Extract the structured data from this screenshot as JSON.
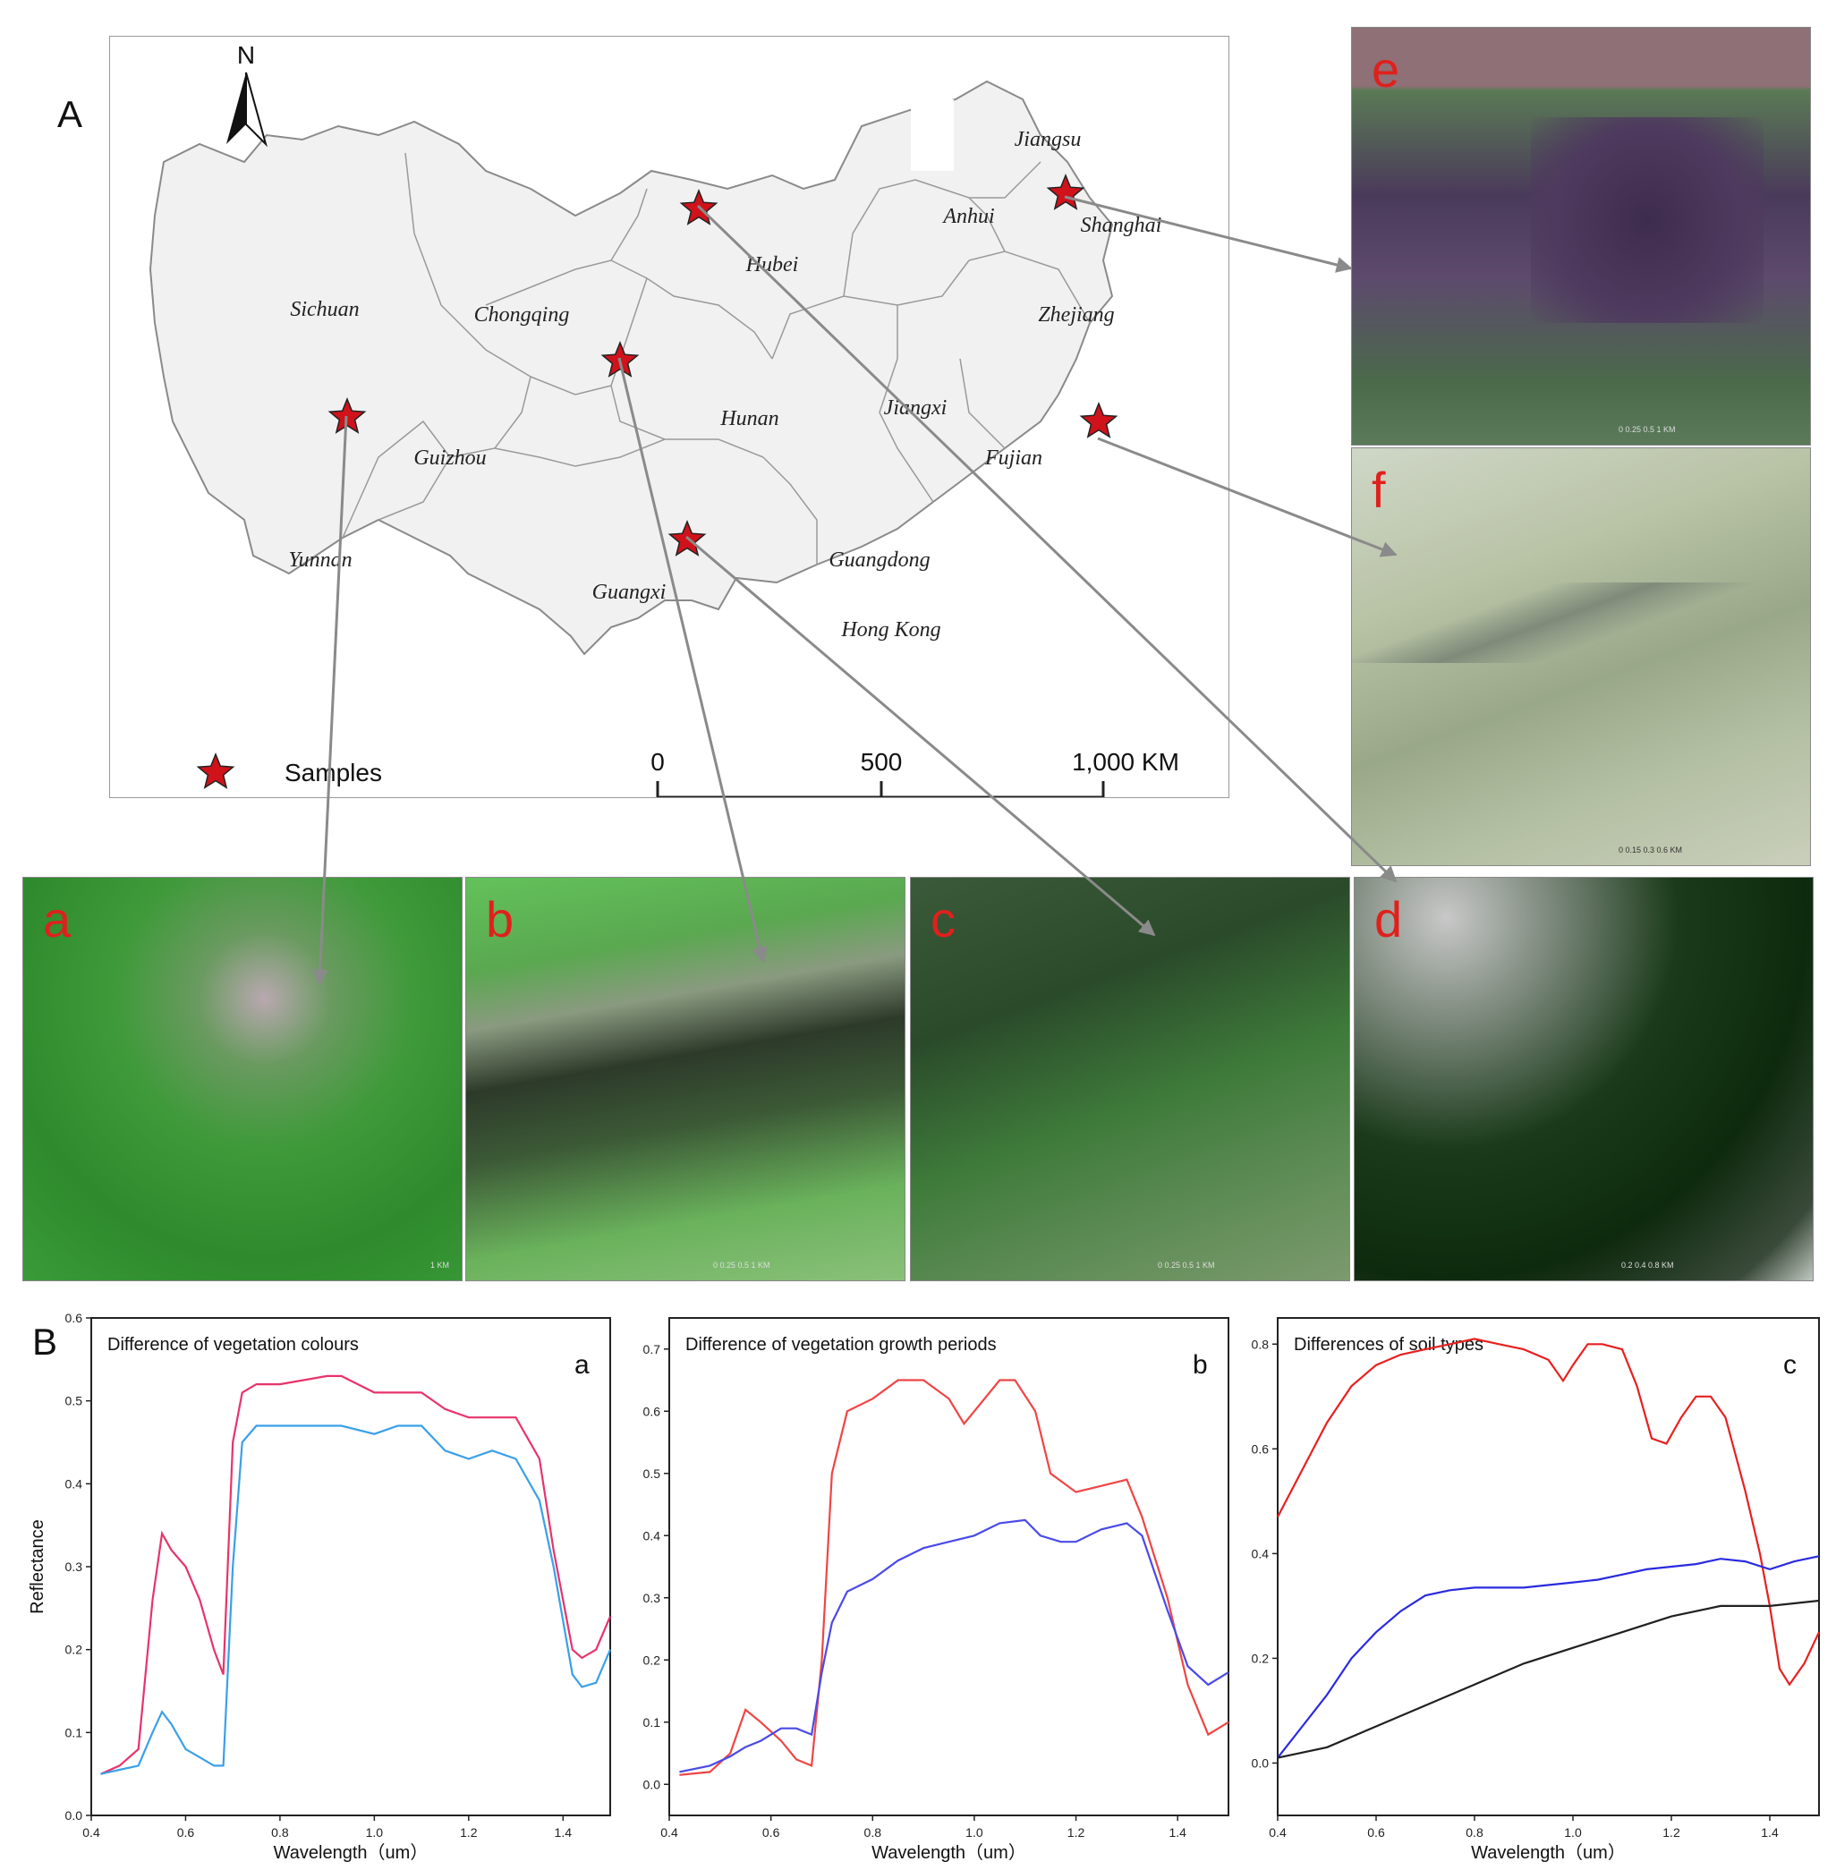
{
  "panel_A": {
    "letter": "A",
    "north_label": "N",
    "provinces": [
      "Sichuan",
      "Chongqing",
      "Hubei",
      "Anhui",
      "Jiangsu",
      "Shanghai",
      "Zhejiang",
      "Hunan",
      "Jiangxi",
      "Fujian",
      "Guizhou",
      "Yunnan",
      "Guangxi",
      "Guangdong",
      "Hong Kong"
    ],
    "legend_label": "Samples",
    "scale_labels": [
      "0",
      "500",
      "1,000 KM"
    ],
    "marker_color": "#d0121b"
  },
  "sat_images": [
    {
      "letter": "e",
      "scale": "0 0.25 0.5 1 KM"
    },
    {
      "letter": "f",
      "scale": "0 0.15 0.3 0.6 KM"
    },
    {
      "letter": "a",
      "scale": "1 KM"
    },
    {
      "letter": "b",
      "scale": "0 0.25 0.5 1 KM"
    },
    {
      "letter": "c",
      "scale": "0 0.25 0.5 1 KM"
    },
    {
      "letter": "d",
      "scale": "0.2 0.4 0.8 KM"
    }
  ],
  "panel_B": {
    "letter": "B"
  },
  "chart_data": [
    {
      "type": "line",
      "title": "Difference of vegetation colours",
      "panel_letter": "a",
      "xlabel": "Wavelength（um）",
      "ylabel": "Reflectance",
      "xlim": [
        0.4,
        1.5
      ],
      "ylim": [
        0,
        0.6
      ],
      "xticks": [
        "0.4",
        "0.6",
        "0.8",
        "1.0",
        "1.2",
        "1.4"
      ],
      "yticks": [
        "0.0",
        "0.1",
        "0.2",
        "0.3",
        "0.4",
        "0.5",
        "0.6"
      ],
      "series": [
        {
          "color": "#e8336b",
          "x": [
            0.42,
            0.46,
            0.5,
            0.53,
            0.55,
            0.57,
            0.6,
            0.63,
            0.66,
            0.68,
            0.7,
            0.72,
            0.75,
            0.8,
            0.9,
            0.93,
            1.0,
            1.05,
            1.1,
            1.15,
            1.2,
            1.25,
            1.3,
            1.35,
            1.38,
            1.42,
            1.44,
            1.47,
            1.5
          ],
          "y": [
            0.05,
            0.06,
            0.08,
            0.26,
            0.34,
            0.32,
            0.3,
            0.26,
            0.2,
            0.17,
            0.45,
            0.51,
            0.52,
            0.52,
            0.53,
            0.53,
            0.51,
            0.51,
            0.51,
            0.49,
            0.48,
            0.48,
            0.48,
            0.43,
            0.32,
            0.2,
            0.19,
            0.2,
            0.24
          ]
        },
        {
          "color": "#3aa0e8",
          "x": [
            0.42,
            0.46,
            0.5,
            0.53,
            0.55,
            0.57,
            0.6,
            0.63,
            0.66,
            0.68,
            0.7,
            0.72,
            0.75,
            0.8,
            0.9,
            0.93,
            1.0,
            1.05,
            1.1,
            1.15,
            1.2,
            1.25,
            1.3,
            1.35,
            1.38,
            1.42,
            1.44,
            1.47,
            1.5
          ],
          "y": [
            0.05,
            0.055,
            0.06,
            0.1,
            0.125,
            0.11,
            0.08,
            0.07,
            0.06,
            0.06,
            0.3,
            0.45,
            0.47,
            0.47,
            0.47,
            0.47,
            0.46,
            0.47,
            0.47,
            0.44,
            0.43,
            0.44,
            0.43,
            0.38,
            0.3,
            0.17,
            0.155,
            0.16,
            0.2
          ]
        }
      ]
    },
    {
      "type": "line",
      "title": "Difference of vegetation growth periods",
      "panel_letter": "b",
      "xlabel": "Wavelength（um）",
      "ylabel": "",
      "xlim": [
        0.4,
        1.5
      ],
      "ylim": [
        -0.05,
        0.75
      ],
      "xticks": [
        "0.4",
        "0.6",
        "0.8",
        "1.0",
        "1.2",
        "1.4"
      ],
      "yticks": [
        "0.0",
        "0.1",
        "0.2",
        "0.3",
        "0.4",
        "0.5",
        "0.6",
        "0.7"
      ],
      "series": [
        {
          "color": "#f04545",
          "x": [
            0.42,
            0.48,
            0.52,
            0.55,
            0.58,
            0.62,
            0.65,
            0.68,
            0.7,
            0.72,
            0.75,
            0.8,
            0.85,
            0.9,
            0.95,
            0.98,
            1.0,
            1.05,
            1.08,
            1.12,
            1.15,
            1.2,
            1.25,
            1.3,
            1.33,
            1.38,
            1.42,
            1.46,
            1.5
          ],
          "y": [
            0.015,
            0.02,
            0.05,
            0.12,
            0.1,
            0.07,
            0.04,
            0.03,
            0.2,
            0.5,
            0.6,
            0.62,
            0.65,
            0.65,
            0.62,
            0.58,
            0.6,
            0.65,
            0.65,
            0.6,
            0.5,
            0.47,
            0.48,
            0.49,
            0.43,
            0.3,
            0.16,
            0.08,
            0.1
          ]
        },
        {
          "color": "#4a4ae8",
          "x": [
            0.42,
            0.48,
            0.52,
            0.55,
            0.58,
            0.62,
            0.65,
            0.68,
            0.7,
            0.72,
            0.75,
            0.8,
            0.85,
            0.9,
            0.95,
            1.0,
            1.05,
            1.1,
            1.13,
            1.17,
            1.2,
            1.25,
            1.3,
            1.33,
            1.38,
            1.42,
            1.46,
            1.5
          ],
          "y": [
            0.02,
            0.03,
            0.045,
            0.06,
            0.07,
            0.09,
            0.09,
            0.08,
            0.18,
            0.26,
            0.31,
            0.33,
            0.36,
            0.38,
            0.39,
            0.4,
            0.42,
            0.425,
            0.4,
            0.39,
            0.39,
            0.41,
            0.42,
            0.4,
            0.28,
            0.19,
            0.16,
            0.18
          ]
        }
      ]
    },
    {
      "type": "line",
      "title": "Differences of soil types",
      "panel_letter": "c",
      "xlabel": "Wavelength（um）",
      "ylabel": "",
      "xlim": [
        0.4,
        1.5
      ],
      "ylim": [
        -0.1,
        0.85
      ],
      "xticks": [
        "0.4",
        "0.6",
        "0.8",
        "1.0",
        "1.2",
        "1.4"
      ],
      "yticks": [
        "0.0",
        "0.2",
        "0.4",
        "0.6",
        "0.8"
      ],
      "series": [
        {
          "color": "#e82020",
          "x": [
            0.4,
            0.45,
            0.5,
            0.55,
            0.6,
            0.65,
            0.7,
            0.75,
            0.8,
            0.85,
            0.9,
            0.95,
            0.98,
            1.0,
            1.03,
            1.06,
            1.1,
            1.13,
            1.16,
            1.19,
            1.22,
            1.25,
            1.28,
            1.31,
            1.35,
            1.38,
            1.4,
            1.42,
            1.44,
            1.47,
            1.5
          ],
          "y": [
            0.47,
            0.56,
            0.65,
            0.72,
            0.76,
            0.78,
            0.79,
            0.8,
            0.81,
            0.8,
            0.79,
            0.77,
            0.73,
            0.76,
            0.8,
            0.8,
            0.79,
            0.72,
            0.62,
            0.61,
            0.66,
            0.7,
            0.7,
            0.66,
            0.52,
            0.4,
            0.3,
            0.18,
            0.15,
            0.19,
            0.25
          ]
        },
        {
          "color": "#2a2ae0",
          "x": [
            0.4,
            0.45,
            0.5,
            0.55,
            0.6,
            0.65,
            0.7,
            0.75,
            0.8,
            0.85,
            0.9,
            0.95,
            1.0,
            1.05,
            1.1,
            1.15,
            1.2,
            1.25,
            1.3,
            1.35,
            1.4,
            1.45,
            1.5
          ],
          "y": [
            0.01,
            0.07,
            0.13,
            0.2,
            0.25,
            0.29,
            0.32,
            0.33,
            0.335,
            0.335,
            0.335,
            0.34,
            0.345,
            0.35,
            0.36,
            0.37,
            0.375,
            0.38,
            0.39,
            0.385,
            0.37,
            0.385,
            0.395
          ]
        },
        {
          "color": "#202020",
          "x": [
            0.4,
            0.5,
            0.6,
            0.7,
            0.8,
            0.9,
            1.0,
            1.1,
            1.2,
            1.3,
            1.4,
            1.5
          ],
          "y": [
            0.01,
            0.03,
            0.07,
            0.11,
            0.15,
            0.19,
            0.22,
            0.25,
            0.28,
            0.3,
            0.3,
            0.31
          ]
        }
      ]
    }
  ]
}
